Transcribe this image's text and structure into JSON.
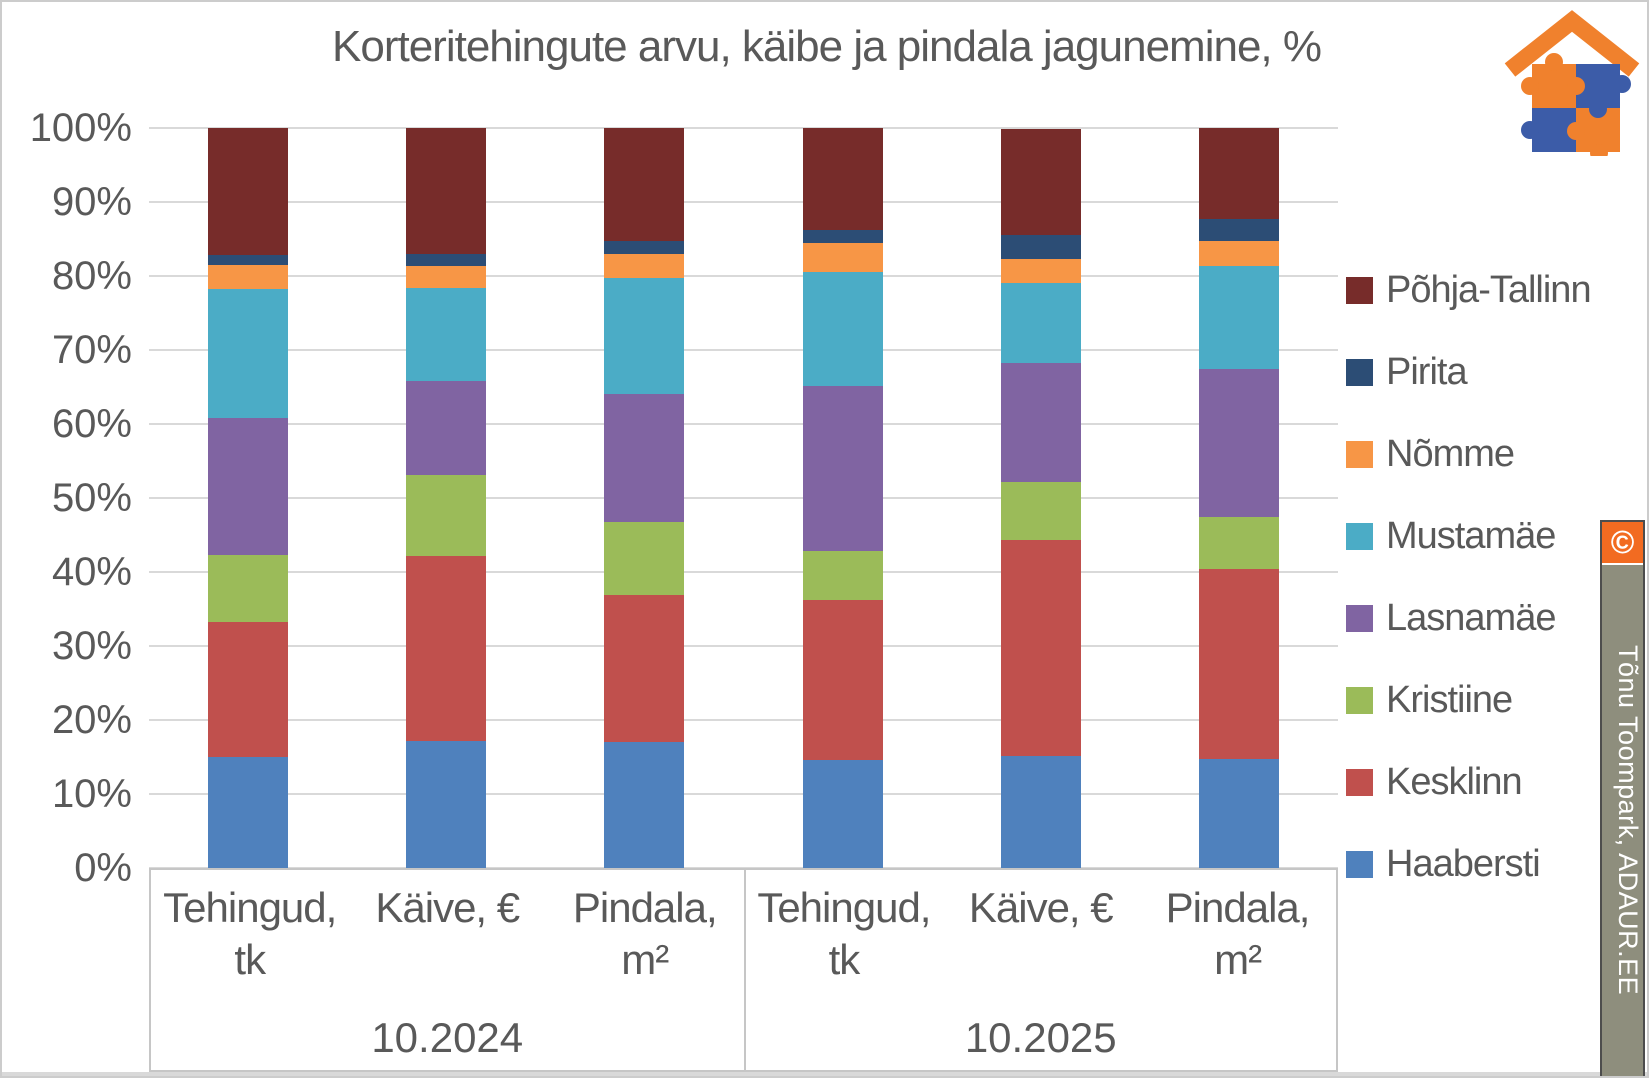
{
  "title": "Korteritehingute arvu, käibe ja pindala jagunemine, %",
  "branding": {
    "copyright_symbol": "©",
    "credit_text": "Tõnu Toompark, ADAUR.EE",
    "logo_name": "puzzle-house-logo",
    "logo_orange": "#f0812d",
    "logo_blue": "#3c5ca8",
    "banner_background": "#8e8e7d",
    "banner_orange": "#f26b21"
  },
  "chart_data": {
    "type": "bar",
    "stacked": true,
    "value_unit": "%",
    "title": "Korteritehingute arvu, käibe ja pindala jagunemine, %",
    "grid": true,
    "legend_position": "right",
    "ylim": [
      0,
      100
    ],
    "y_tick_step": 10,
    "y_tick_labels": [
      "0%",
      "10%",
      "20%",
      "30%",
      "40%",
      "50%",
      "60%",
      "70%",
      "80%",
      "90%",
      "100%"
    ],
    "groups": [
      {
        "label": "10.2024",
        "categories": [
          [
            "Tehingud,",
            "tk"
          ],
          [
            "Käive, €",
            ""
          ],
          [
            "Pindala,",
            "m²"
          ]
        ]
      },
      {
        "label": "10.2025",
        "categories": [
          [
            "Tehingud,",
            "tk"
          ],
          [
            "Käive, €",
            ""
          ],
          [
            "Pindala,",
            "m²"
          ]
        ]
      }
    ],
    "column_keys": [
      "Tehingud, tk 10.2024",
      "Käive, € 10.2024",
      "Pindala, m² 10.2024",
      "Tehingud, tk 10.2025",
      "Käive, € 10.2025",
      "Pindala, m² 10.2025"
    ],
    "series": [
      {
        "name": "Haabersti",
        "color": "#4F81BD",
        "values": [
          15.0,
          17.1,
          17.0,
          14.6,
          15.2,
          14.7
        ]
      },
      {
        "name": "Kesklinn",
        "color": "#C0504D",
        "values": [
          18.3,
          25.0,
          19.9,
          21.6,
          29.1,
          25.7
        ]
      },
      {
        "name": "Kristiine",
        "color": "#9BBB59",
        "values": [
          9.0,
          11.0,
          9.9,
          6.7,
          7.9,
          7.0
        ]
      },
      {
        "name": "Lasnamäe",
        "color": "#8064A2",
        "values": [
          18.5,
          12.7,
          17.2,
          22.3,
          16.0,
          20.0
        ]
      },
      {
        "name": "Mustamäe",
        "color": "#4BACC6",
        "values": [
          17.4,
          12.6,
          15.8,
          15.4,
          10.9,
          13.9
        ]
      },
      {
        "name": "Nõmme",
        "color": "#F79646",
        "values": [
          3.3,
          2.9,
          3.2,
          3.8,
          3.2,
          3.4
        ]
      },
      {
        "name": "Pirita",
        "color": "#2C4D75",
        "values": [
          1.4,
          1.7,
          1.7,
          1.8,
          3.3,
          3.0
        ]
      },
      {
        "name": "Põhja-Tallinn",
        "color": "#772C2A",
        "values": [
          17.1,
          17.0,
          15.3,
          13.8,
          14.3,
          12.3
        ]
      }
    ],
    "legend_top_to_bottom": [
      "Põhja-Tallinn",
      "Pirita",
      "Nõmme",
      "Mustamäe",
      "Lasnamäe",
      "Kristiine",
      "Kesklinn",
      "Haabersti"
    ]
  }
}
